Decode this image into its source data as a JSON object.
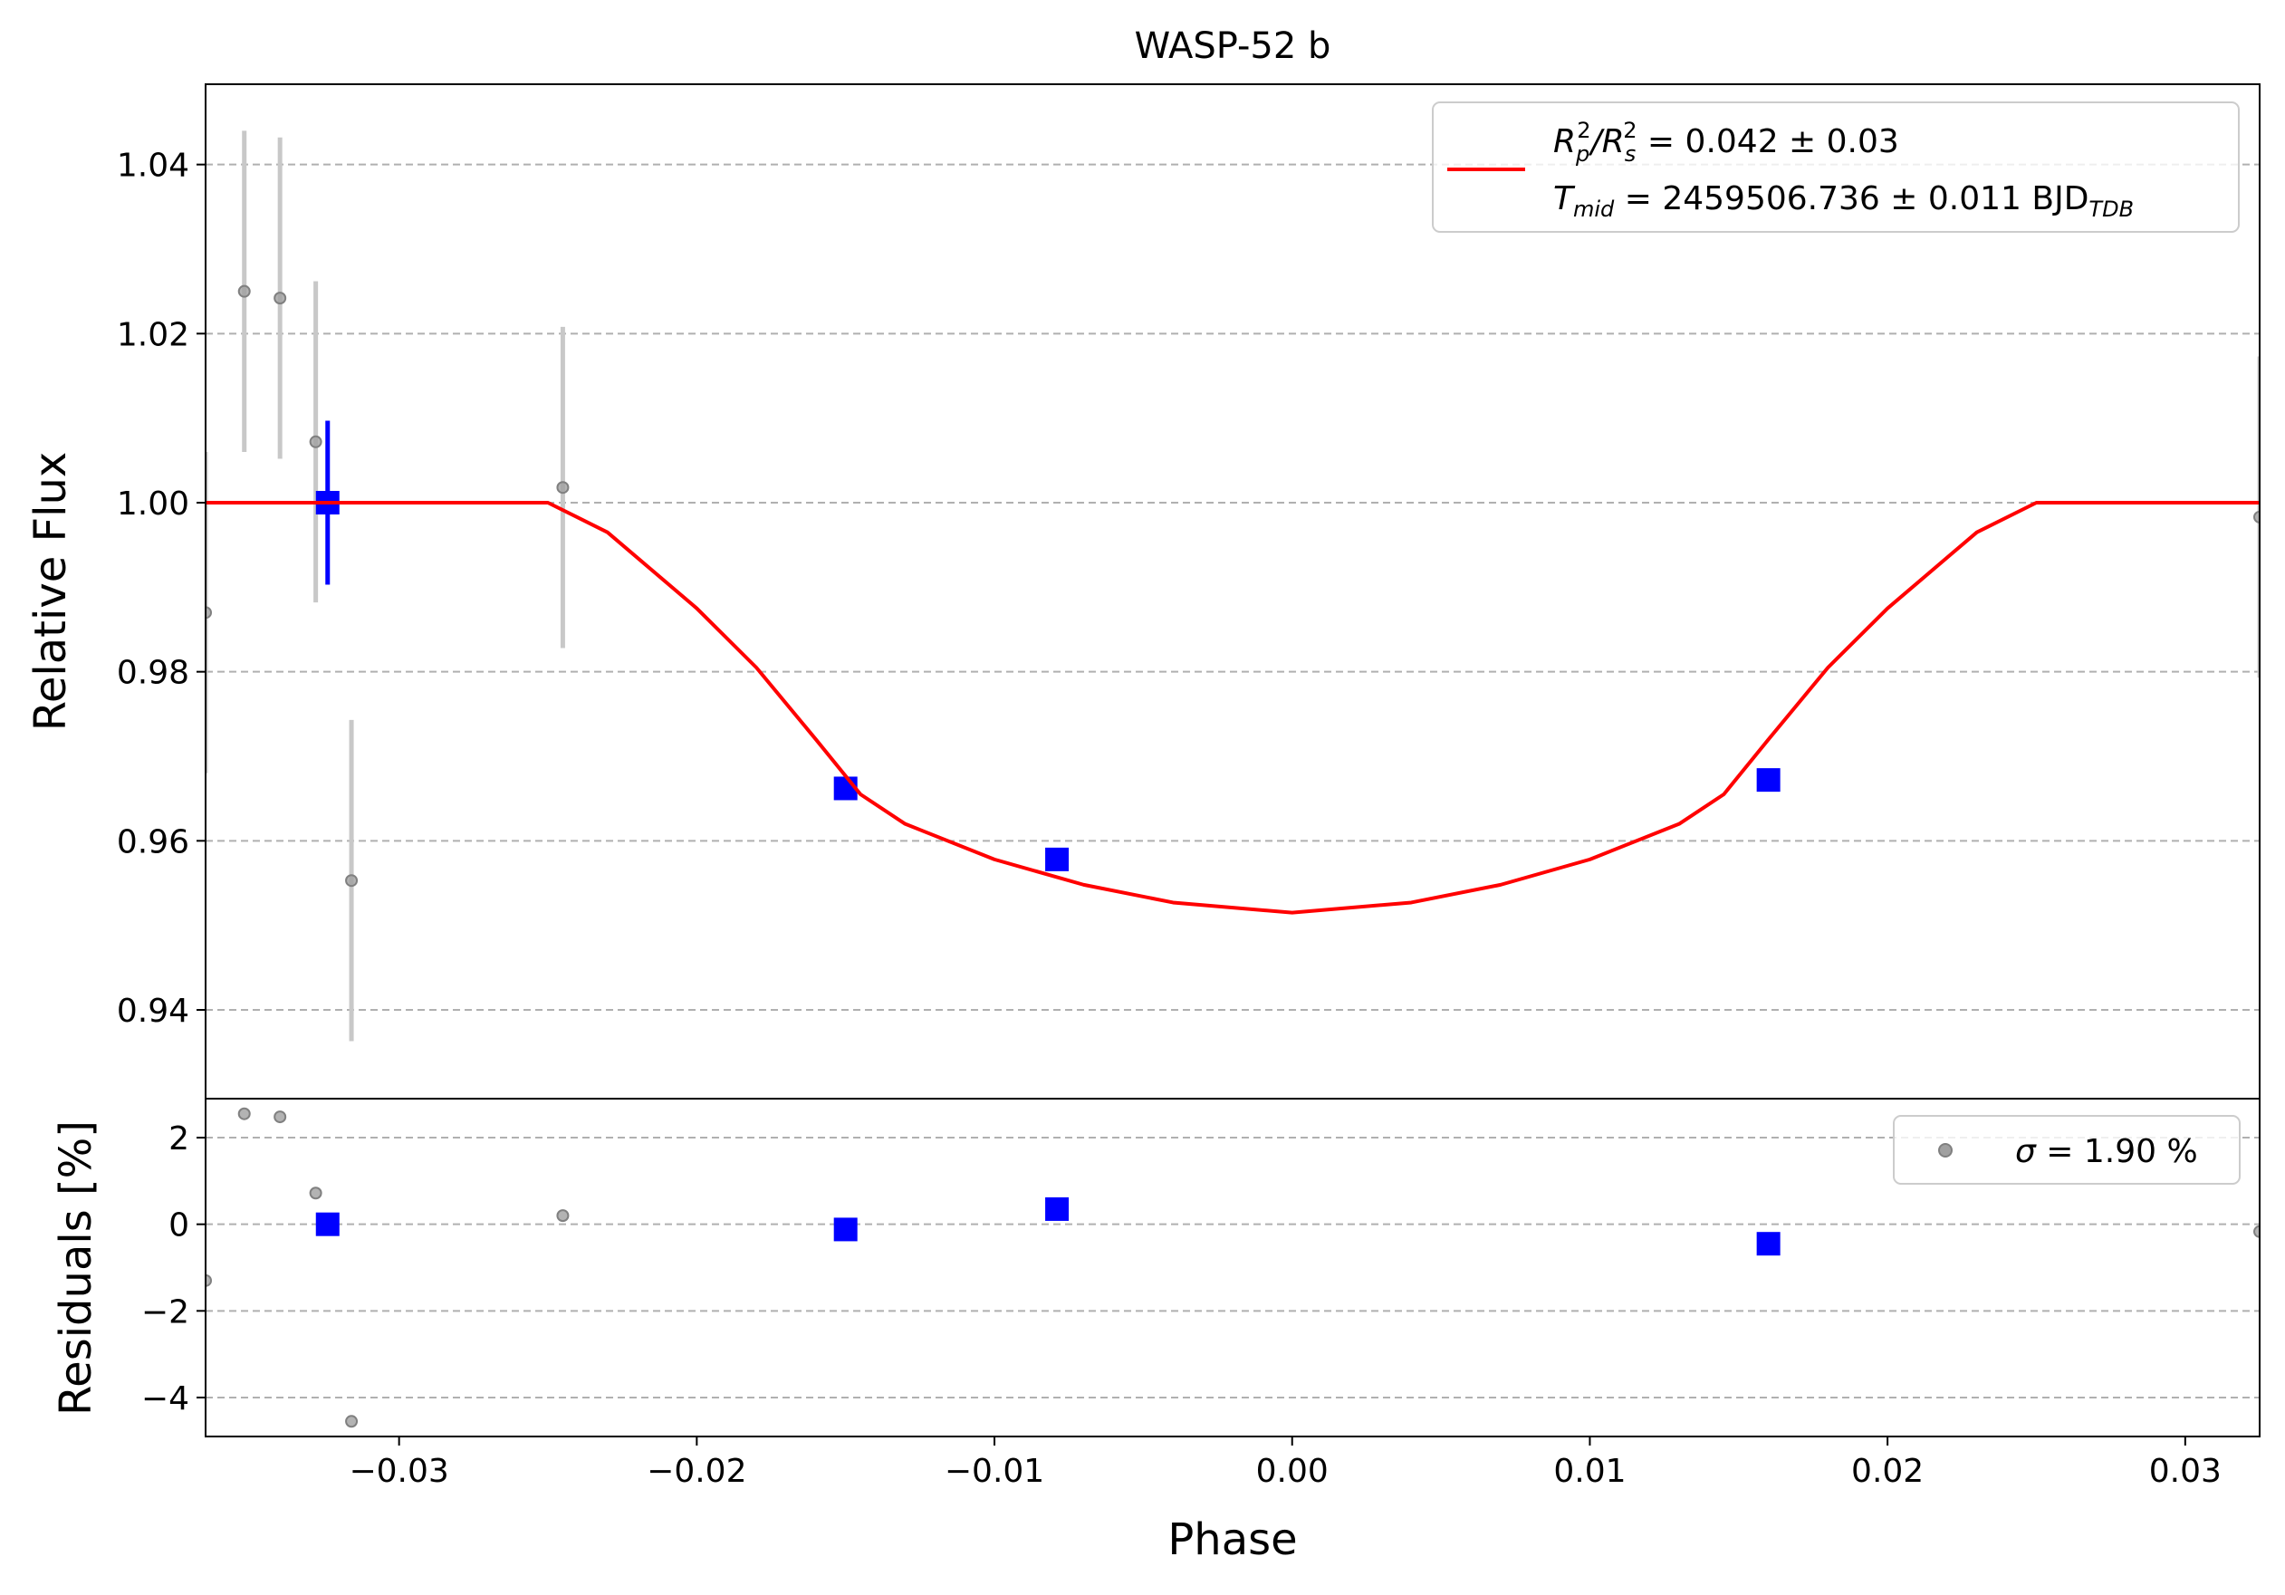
{
  "chart_data": {
    "type": "scatter",
    "title": "WASP-52 b",
    "xlabel": "Phase",
    "xlim": [
      -0.0365,
      0.0325
    ],
    "xticks": [
      -0.03,
      -0.02,
      -0.01,
      0.0,
      0.01,
      0.02,
      0.03
    ],
    "xtick_labels": [
      "−0.03",
      "−0.02",
      "−0.01",
      "0.00",
      "0.01",
      "0.02",
      "0.03"
    ],
    "grid": "horizontal dashed",
    "colors": {
      "raw": "#808080",
      "raw_err": "#c8c8c8",
      "binned": "#0000ff",
      "model": "#ff0000"
    },
    "panels": [
      {
        "name": "flux",
        "ylabel": "Relative Flux",
        "ylim": [
          0.9295,
          1.0495
        ],
        "yticks": [
          0.94,
          0.96,
          0.98,
          1.0,
          1.02,
          1.04
        ],
        "ytick_labels": [
          "0.94",
          "0.96",
          "0.98",
          "1.00",
          "1.02",
          "1.04"
        ],
        "series": [
          {
            "kind": "raw",
            "x": [
              -0.0365,
              -0.0352,
              -0.034,
              -0.0328,
              -0.0316,
              -0.0245,
              0.0325
            ],
            "y": [
              0.987,
              1.025,
              1.0242,
              1.0072,
              0.9553,
              1.0018,
              0.9983
            ],
            "yerr": [
              0.019,
              0.019,
              0.019,
              0.019,
              0.019,
              0.019,
              0.019
            ]
          },
          {
            "kind": "binned",
            "x": [
              -0.0324,
              -0.015,
              -0.0079,
              0.016
            ],
            "y": [
              1.0,
              0.9662,
              0.9578,
              0.9672
            ],
            "yerr": [
              0.0097,
              0.0,
              0.0,
              0.0
            ]
          },
          {
            "kind": "model",
            "x": [
              -0.0365,
              -0.025,
              -0.023,
              -0.02,
              -0.018,
              -0.016,
              -0.0145,
              -0.013,
              -0.01,
              -0.007,
              -0.004,
              0.0,
              0.004,
              0.007,
              0.01,
              0.013,
              0.0145,
              0.016,
              0.018,
              0.02,
              0.023,
              0.025,
              0.0325
            ],
            "y": [
              1.0,
              1.0,
              0.9965,
              0.9875,
              0.9805,
              0.972,
              0.9655,
              0.962,
              0.9578,
              0.9548,
              0.9527,
              0.9515,
              0.9527,
              0.9548,
              0.9578,
              0.962,
              0.9655,
              0.972,
              0.9805,
              0.9875,
              0.9965,
              1.0,
              1.0
            ]
          }
        ]
      },
      {
        "name": "residuals",
        "ylabel": "Residuals [%]",
        "ylim": [
          -4.9,
          2.9
        ],
        "yticks": [
          -4,
          -2,
          0,
          2
        ],
        "ytick_labels": [
          "−4",
          "−2",
          "0",
          "2"
        ],
        "series": [
          {
            "kind": "raw",
            "x": [
              -0.0365,
              -0.0352,
              -0.034,
              -0.0328,
              -0.0316,
              -0.0245,
              0.0325
            ],
            "y": [
              -1.3,
              2.55,
              2.48,
              0.72,
              -4.55,
              0.2,
              -0.17
            ]
          },
          {
            "kind": "binned",
            "x": [
              -0.0324,
              -0.015,
              -0.0079,
              0.016
            ],
            "y": [
              0.0,
              -0.12,
              0.35,
              -0.45
            ]
          }
        ]
      }
    ],
    "legend_flux": {
      "position": "upper right",
      "rp_part1": "R",
      "rp_sub": "p",
      "rp_sup": "2",
      "rp_slash": "/R",
      "rs_sub": "s",
      "rs_sup": "2",
      "rp_value": " = 0.042 ± 0.03",
      "tmid_main": "T",
      "tmid_sub": "mid",
      "tmid_value": " = 2459506.736 ± 0.011 BJD",
      "tmid_unit_sub": "TDB"
    },
    "legend_residuals": {
      "position": "upper right",
      "sigma_symbol": "σ",
      "sigma_value": " = 1.90 %"
    }
  }
}
